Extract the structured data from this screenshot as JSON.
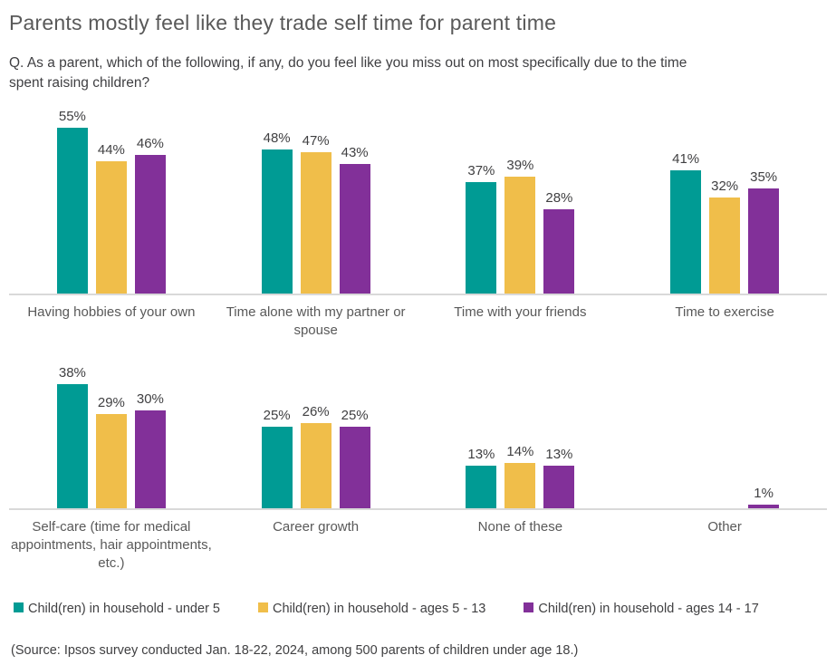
{
  "title": "Parents mostly feel like they trade self time for parent time",
  "question": "Q. As a parent, which of the following, if any, do you feel like you miss out on most specifically due to the time spent raising children?",
  "source": "(Source: Ipsos survey conducted Jan. 18-22, 2024, among 500 parents of children under age 18.)",
  "legend": [
    {
      "label": "Child(ren) in household - under 5",
      "color": "#009B94"
    },
    {
      "label": "Child(ren) in household - ages 5 - 13",
      "color": "#F0BE4A"
    },
    {
      "label": "Child(ren) in household - ages 14 - 17",
      "color": "#823099"
    }
  ],
  "chart_data": {
    "type": "bar",
    "title": "Parents mostly feel like they trade self time for parent time",
    "value_suffix": "%",
    "ylim": [
      0,
      60
    ],
    "grid": false,
    "legend_position": "bottom",
    "categories": [
      "Having hobbies of your own",
      "Time alone with my partner or spouse",
      "Time with your friends",
      "Time to exercise",
      "Self-care (time for medical appointments, hair appointments, etc.)",
      "Career growth",
      "None of these",
      "Other"
    ],
    "series": [
      {
        "name": "Child(ren) in household - under 5",
        "color": "#009B94",
        "values": [
          55,
          48,
          37,
          41,
          38,
          25,
          13,
          null
        ]
      },
      {
        "name": "Child(ren) in household - ages 5 - 13",
        "color": "#F0BE4A",
        "values": [
          44,
          47,
          39,
          32,
          29,
          26,
          14,
          null
        ]
      },
      {
        "name": "Child(ren) in household - ages 14 - 17",
        "color": "#823099",
        "values": [
          46,
          43,
          28,
          35,
          30,
          25,
          13,
          1
        ]
      }
    ],
    "layout_rows": [
      [
        0,
        1,
        2,
        3
      ],
      [
        4,
        5,
        6,
        7
      ]
    ]
  }
}
